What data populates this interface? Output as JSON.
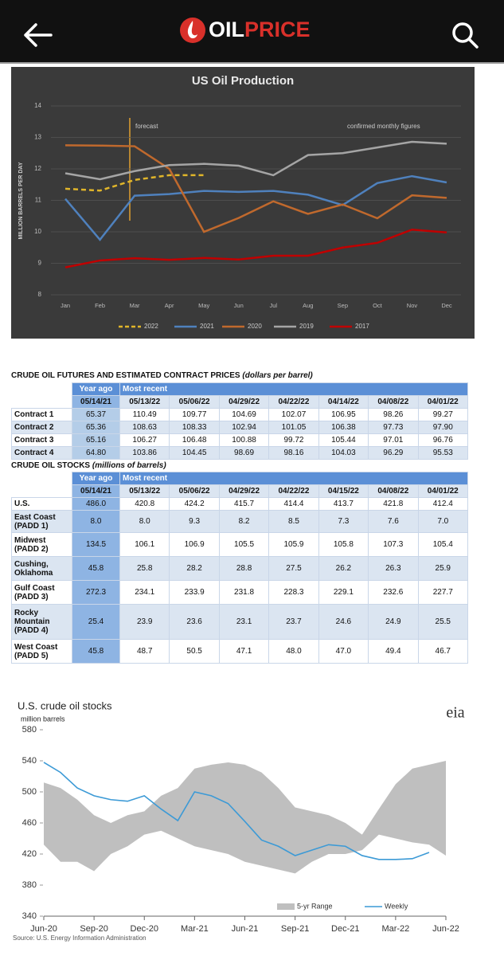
{
  "header": {
    "logo_parts": [
      "OIL",
      "PRICE"
    ]
  },
  "chart_data": [
    {
      "type": "line",
      "title": "US Oil Production",
      "y_label": "MILLION BARRELS PER DAY",
      "annotations": [
        "forecast",
        "confirmed monthly figures"
      ],
      "categories": [
        "Jan",
        "Feb",
        "Mar",
        "Apr",
        "May",
        "Jun",
        "Jul",
        "Aug",
        "Sep",
        "Oct",
        "Nov",
        "Dec"
      ],
      "ylim": [
        8,
        14
      ],
      "yticks": [
        8,
        9,
        10,
        11,
        12,
        13,
        14
      ],
      "grid": true,
      "series": [
        {
          "name": "2022",
          "color": "#e0b52a",
          "dashed": true,
          "values": [
            11.37,
            11.31,
            11.65,
            11.8,
            11.8,
            null,
            null,
            null,
            null,
            null,
            null,
            null
          ]
        },
        {
          "name": "2021",
          "color": "#4f81bd",
          "values": [
            11.05,
            9.75,
            11.15,
            11.2,
            11.3,
            11.27,
            11.3,
            11.18,
            10.85,
            11.55,
            11.77,
            11.57
          ]
        },
        {
          "name": "2020",
          "color": "#c0692d",
          "values": [
            12.75,
            12.74,
            12.72,
            12.0,
            10.0,
            10.44,
            10.97,
            10.57,
            10.87,
            10.43,
            11.16,
            11.08
          ]
        },
        {
          "name": "2019",
          "color": "#a5a5a5",
          "values": [
            11.86,
            11.67,
            11.93,
            12.12,
            12.16,
            12.1,
            11.8,
            12.44,
            12.5,
            12.68,
            12.86,
            12.8
          ]
        },
        {
          "name": "2017",
          "color": "#c00000",
          "values": [
            8.87,
            9.09,
            9.16,
            9.11,
            9.17,
            9.12,
            9.24,
            9.24,
            9.5,
            9.65,
            10.07,
            9.98
          ]
        }
      ]
    },
    {
      "type": "range_line",
      "title": "U.S. crude oil stocks",
      "subtitle": "million barrels",
      "logo": "eia",
      "source": "Source: U.S. Energy Information Administration",
      "categories": [
        "Jun-20",
        null,
        null,
        "Sep-20",
        null,
        null,
        "Dec-20",
        null,
        null,
        "Mar-21",
        null,
        null,
        "Jun-21",
        null,
        null,
        "Sep-21",
        null,
        null,
        "Dec-21",
        null,
        null,
        "Mar-22",
        null,
        null,
        "Jun-22"
      ],
      "ylim": [
        340,
        580
      ],
      "yticks": [
        340,
        380,
        420,
        460,
        500,
        540,
        580
      ],
      "series": [
        {
          "name": "5-yr Range",
          "color": "#bfbfbf",
          "low": [
            432,
            410,
            410,
            398,
            420,
            430,
            445,
            450,
            440,
            430,
            425,
            420,
            410,
            405,
            400,
            395,
            410,
            420,
            420,
            425,
            445,
            440,
            435,
            432,
            418
          ],
          "high": [
            512,
            505,
            490,
            470,
            460,
            470,
            475,
            495,
            505,
            530,
            535,
            538,
            535,
            525,
            505,
            480,
            475,
            470,
            460,
            445,
            478,
            510,
            530,
            535,
            540
          ]
        },
        {
          "name": "Weekly",
          "color": "#3c9ad6",
          "values": [
            538,
            525,
            505,
            495,
            490,
            488,
            495,
            478,
            463,
            500,
            495,
            485,
            462,
            438,
            430,
            418,
            425,
            432,
            430,
            418,
            413,
            413,
            414,
            422,
            null
          ]
        }
      ]
    }
  ],
  "tables": [
    {
      "title": "CRUDE OIL FUTURES AND ESTIMATED CONTRACT PRICES",
      "unit": "(dollars per barrel)",
      "group_headers": [
        "Year ago",
        "Most recent"
      ],
      "columns": [
        "05/14/21",
        "05/13/22",
        "05/06/22",
        "04/29/22",
        "04/22/22",
        "04/14/22",
        "04/08/22",
        "04/01/22"
      ],
      "rows": [
        {
          "label": "Contract 1",
          "values": [
            "65.37",
            "110.49",
            "109.77",
            "104.69",
            "102.07",
            "106.95",
            "98.26",
            "99.27"
          ]
        },
        {
          "label": "Contract 2",
          "values": [
            "65.36",
            "108.63",
            "108.33",
            "102.94",
            "101.05",
            "106.38",
            "97.73",
            "97.90"
          ]
        },
        {
          "label": "Contract 3",
          "values": [
            "65.16",
            "106.27",
            "106.48",
            "100.88",
            "99.72",
            "105.44",
            "97.01",
            "96.76"
          ]
        },
        {
          "label": "Contract 4",
          "values": [
            "64.80",
            "103.86",
            "104.45",
            "98.69",
            "98.16",
            "104.03",
            "96.29",
            "95.53"
          ]
        }
      ]
    },
    {
      "title": "CRUDE OIL STOCKS",
      "unit": "(millions of barrels)",
      "group_headers": [
        "Year ago",
        "Most recent"
      ],
      "columns": [
        "05/14/21",
        "05/13/22",
        "05/06/22",
        "04/29/22",
        "04/22/22",
        "04/15/22",
        "04/08/22",
        "04/01/22"
      ],
      "rows": [
        {
          "label": "U.S.",
          "values": [
            "486.0",
            "420.8",
            "424.2",
            "415.7",
            "414.4",
            "413.7",
            "421.8",
            "412.4"
          ]
        },
        {
          "label": "East Coast\n(PADD 1)",
          "values": [
            "8.0",
            "8.0",
            "9.3",
            "8.2",
            "8.5",
            "7.3",
            "7.6",
            "7.0"
          ]
        },
        {
          "label": "Midwest\n(PADD 2)",
          "values": [
            "134.5",
            "106.1",
            "106.9",
            "105.5",
            "105.9",
            "105.8",
            "107.3",
            "105.4"
          ]
        },
        {
          "label": "Cushing,\nOklahoma",
          "values": [
            "45.8",
            "25.8",
            "28.2",
            "28.8",
            "27.5",
            "26.2",
            "26.3",
            "25.9"
          ]
        },
        {
          "label": "Gulf Coast\n(PADD 3)",
          "values": [
            "272.3",
            "234.1",
            "233.9",
            "231.8",
            "228.3",
            "229.1",
            "232.6",
            "227.7"
          ]
        },
        {
          "label": "Rocky\nMountain\n(PADD 4)",
          "values": [
            "25.4",
            "23.9",
            "23.6",
            "23.1",
            "23.7",
            "24.6",
            "24.9",
            "25.5"
          ]
        },
        {
          "label": "West Coast\n(PADD 5)",
          "values": [
            "45.8",
            "48.7",
            "50.5",
            "47.1",
            "48.0",
            "47.0",
            "49.4",
            "46.7"
          ]
        }
      ]
    }
  ]
}
